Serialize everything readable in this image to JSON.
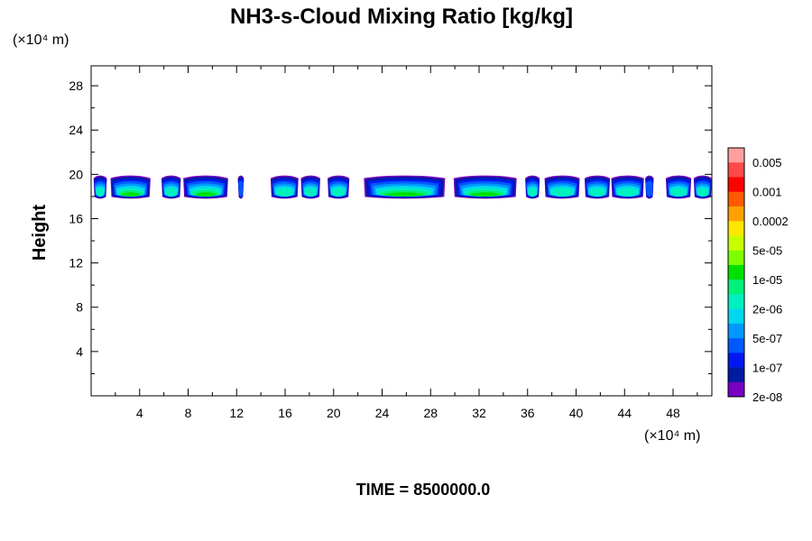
{
  "chart_data": {
    "type": "heatmap",
    "title": "NH3-s-Cloud Mixing Ratio [kg/kg]",
    "ylabel": "Height",
    "x_unit_label": "(×10⁴ m)",
    "y_unit_label": "(×10⁴ m)",
    "footer": "TIME = 8500000.0",
    "xlim": [
      0,
      51.2
    ],
    "ylim": [
      0,
      29.8
    ],
    "x_ticks": [
      4,
      8,
      12,
      16,
      20,
      24,
      28,
      32,
      36,
      40,
      44,
      48
    ],
    "y_ticks": [
      4,
      8,
      12,
      16,
      20,
      24,
      28
    ],
    "colorbar": {
      "labels": [
        "0.005",
        "0.001",
        "0.0002",
        "5e-05",
        "1e-05",
        "2e-06",
        "5e-07",
        "1e-07",
        "2e-08"
      ],
      "colors_top_to_bottom": [
        "#ff9f9f",
        "#ff4a4a",
        "#ff0000",
        "#ff5a00",
        "#ffa000",
        "#ffe600",
        "#c8ff00",
        "#7dff00",
        "#00e000",
        "#00f078",
        "#00f0c0",
        "#00d8f0",
        "#0098ff",
        "#0058ff",
        "#0018f0",
        "#001aa0",
        "#7800c0"
      ]
    },
    "cloud_band": {
      "height_range": [
        17.8,
        19.9
      ],
      "x_extents": [
        [
          0.2,
          1.3
        ],
        [
          1.6,
          4.9
        ],
        [
          5.8,
          7.4
        ],
        [
          7.6,
          11.3
        ],
        [
          12.1,
          12.6
        ],
        [
          14.8,
          17.1
        ],
        [
          17.3,
          18.9
        ],
        [
          19.5,
          21.3
        ],
        [
          22.5,
          29.2
        ],
        [
          29.9,
          35.1
        ],
        [
          35.8,
          37.0
        ],
        [
          37.4,
          40.3
        ],
        [
          40.7,
          42.8
        ],
        [
          42.9,
          45.6
        ],
        [
          45.7,
          46.4
        ],
        [
          47.4,
          49.5
        ],
        [
          49.7,
          51.2
        ]
      ]
    }
  }
}
